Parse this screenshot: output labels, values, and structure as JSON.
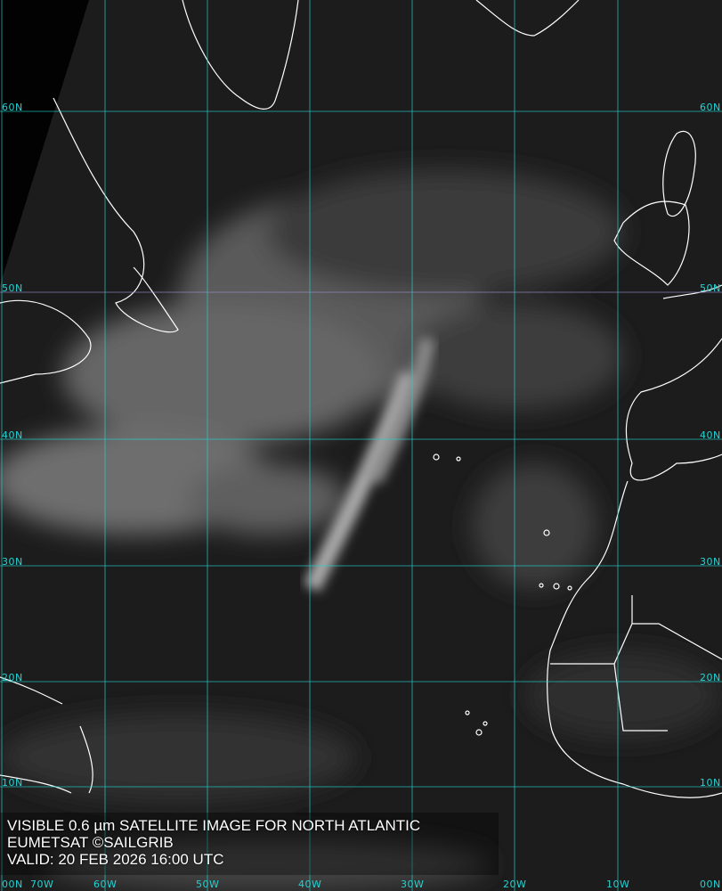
{
  "caption": {
    "line1": "VISIBLE 0.6 µm SATELLITE IMAGE FOR NORTH ATLANTIC",
    "line2": "EUMETSAT ©SAILGRIB",
    "line3": "VALID:  20 FEB 2026 16:00 UTC"
  },
  "grid": {
    "color": "#22d3d3",
    "latitudes": [
      "60N",
      "50N",
      "40N",
      "30N",
      "20N",
      "10N",
      "00N"
    ],
    "longitudes": [
      "70W",
      "60W",
      "50W",
      "40W",
      "30W",
      "20W",
      "10W"
    ]
  },
  "coastline_color": "#ffffff"
}
